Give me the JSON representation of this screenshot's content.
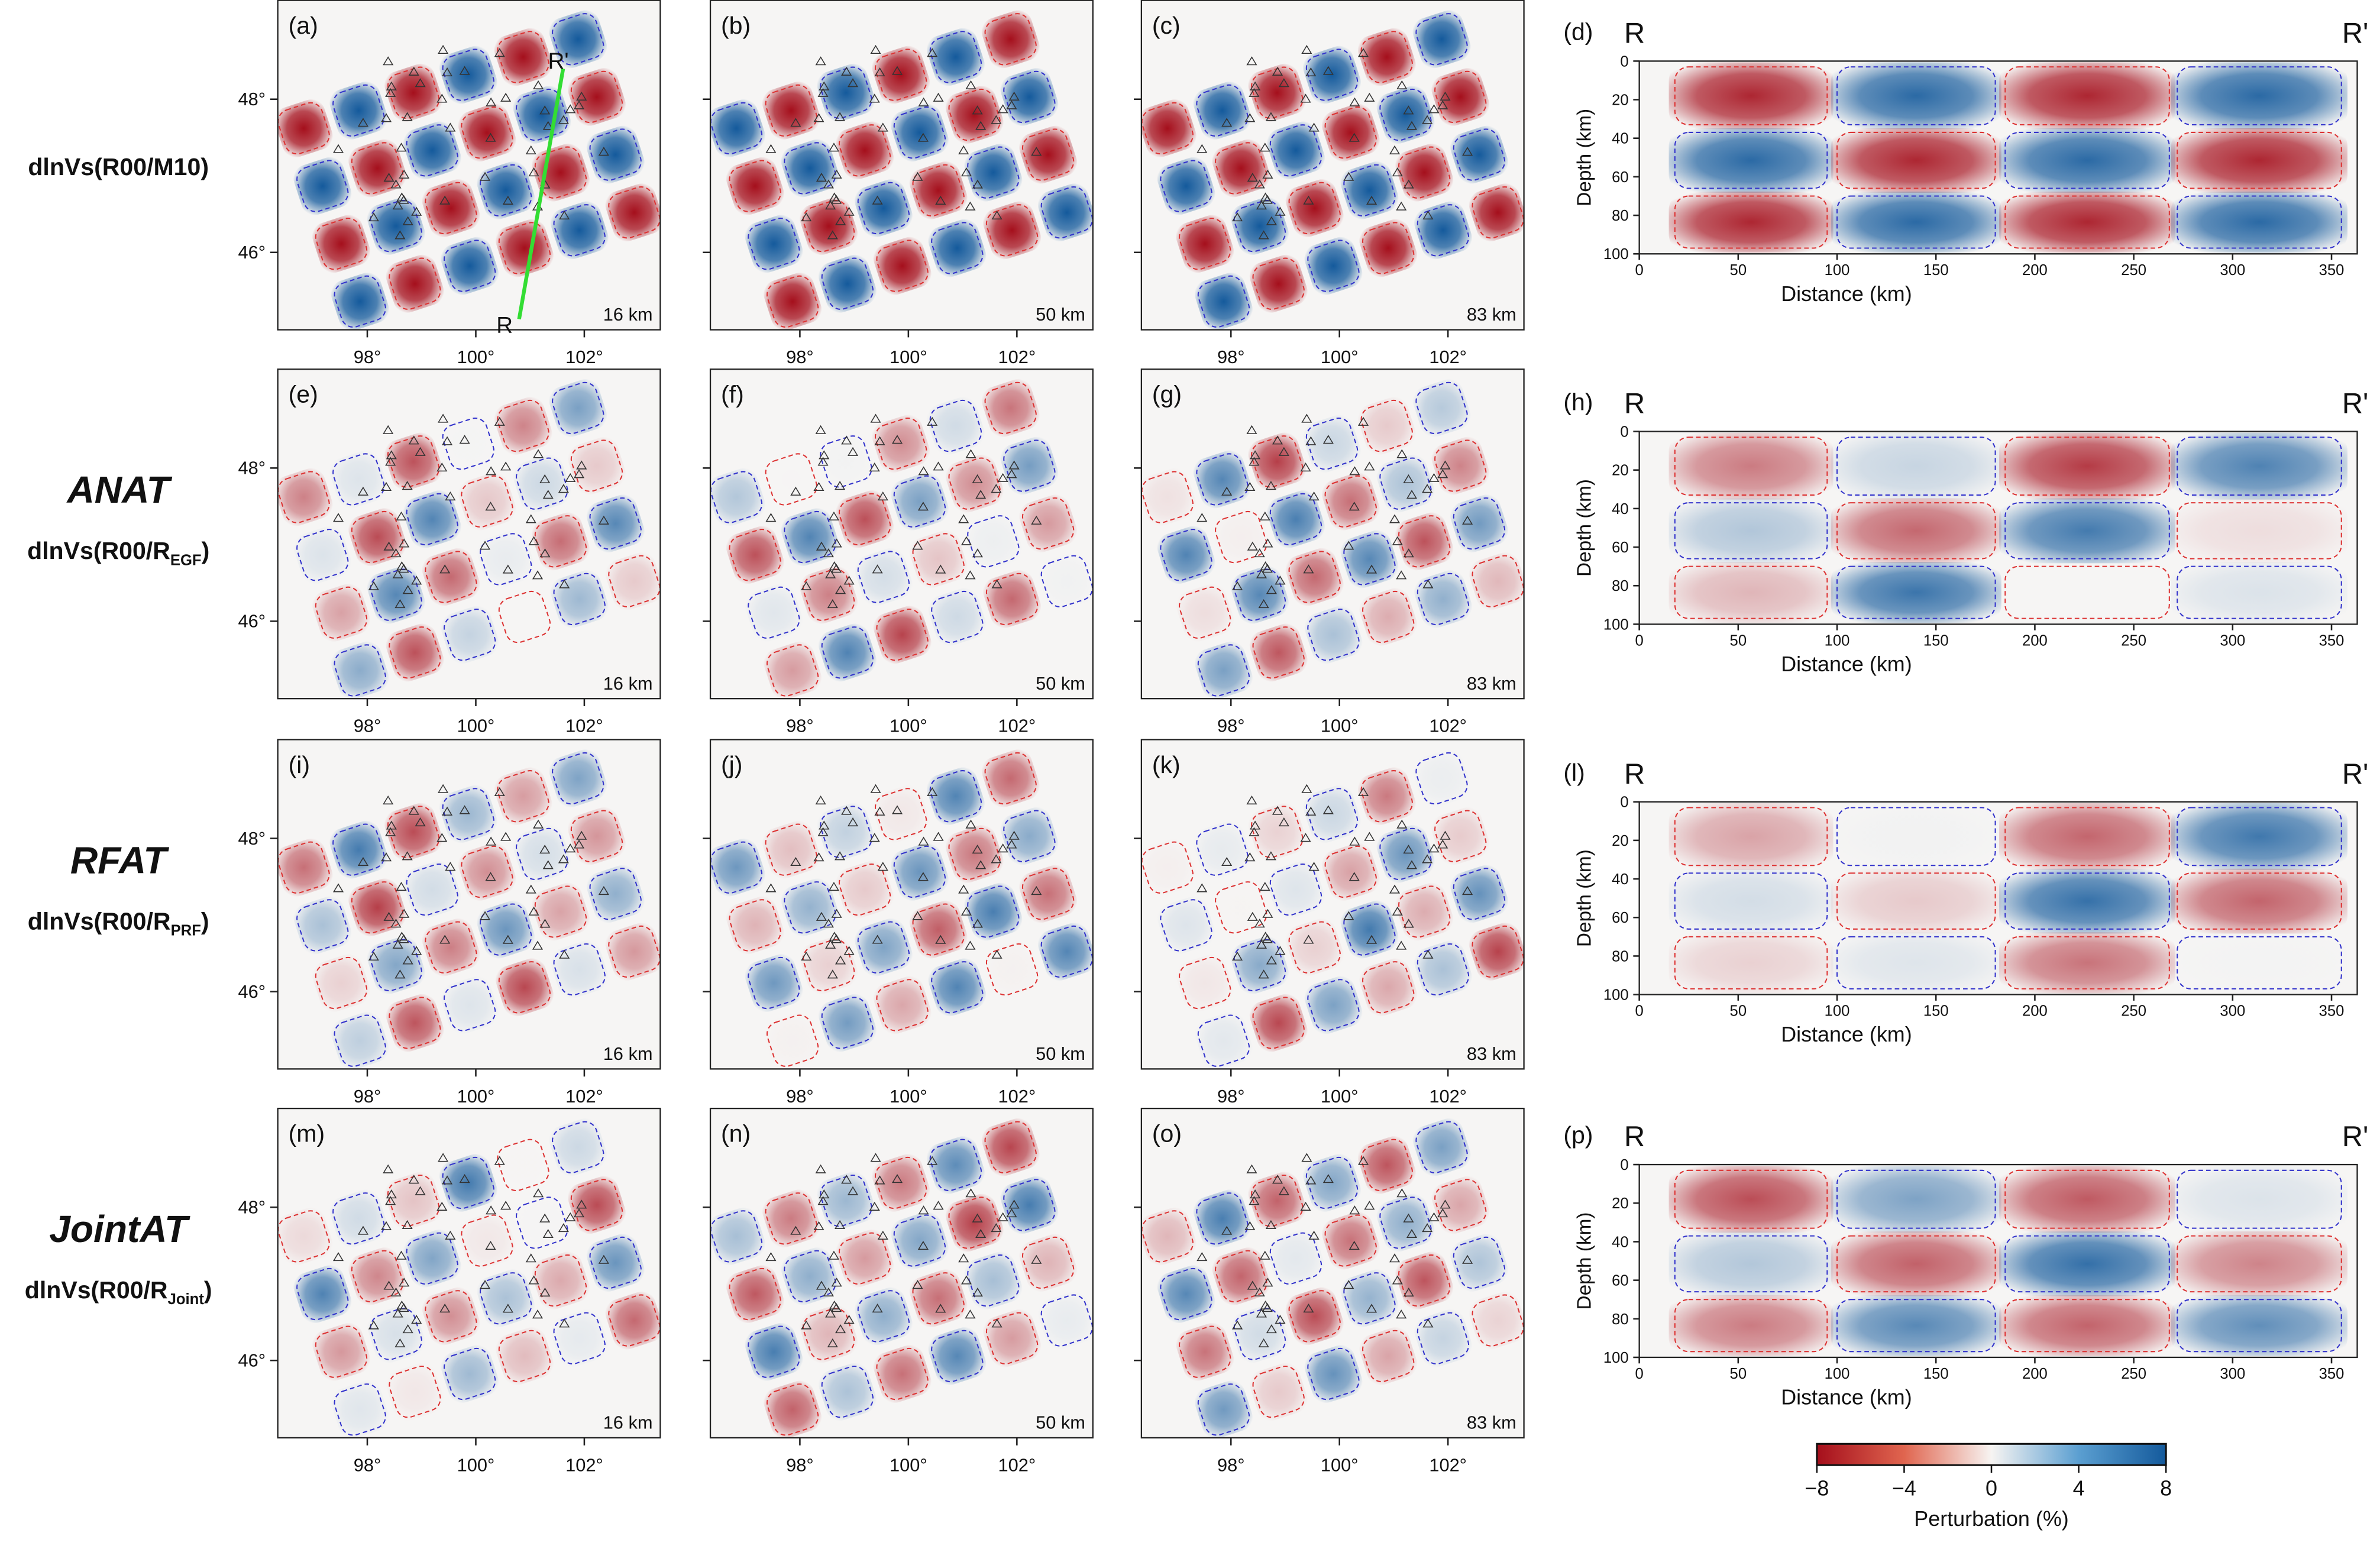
{
  "rows": [
    {
      "label": {
        "text": "dlnVs(R00/M10)"
      }
    },
    {
      "method": "ANAT",
      "label": {
        "text": "dlnVs(R00/R",
        "sub": "EGF",
        "tail": ")"
      }
    },
    {
      "method": "RFAT",
      "label": {
        "text": "dlnVs(R00/R",
        "sub": "PRF",
        "tail": ")"
      }
    },
    {
      "method": "JointAT",
      "label": {
        "text": "dlnVs(R00/R",
        "sub": "Joint",
        "tail": ")"
      }
    }
  ],
  "map_labels": [
    [
      "(a)",
      "(b)",
      "(c)"
    ],
    [
      "(e)",
      "(f)",
      "(g)"
    ],
    [
      "(i)",
      "(j)",
      "(k)"
    ],
    [
      "(m)",
      "(n)",
      "(o)"
    ]
  ],
  "section_labels": [
    "(d)",
    "(h)",
    "(l)",
    "(p)"
  ],
  "depths": [
    "16 km",
    "50 km",
    "83 km"
  ],
  "profile": {
    "start": "R",
    "end": "R'"
  },
  "map": {
    "lonlim": [
      96.35,
      103.4
    ],
    "latlim": [
      44.99,
      49.29
    ],
    "lon_ticks": [
      {
        "value": 98,
        "label": "98°"
      },
      {
        "value": 100,
        "label": "100°"
      },
      {
        "value": 102,
        "label": "102°"
      }
    ],
    "lat_ticks": [
      {
        "value": 48,
        "label": "48°"
      },
      {
        "value": 46,
        "label": "46°"
      }
    ]
  },
  "section": {
    "xlabel": "Distance (km)",
    "ylabel": "Depth (km)",
    "xlim": [
      0,
      363
    ],
    "ylim": [
      0,
      100
    ],
    "xticks": [
      0,
      50,
      100,
      150,
      200,
      250,
      300,
      350
    ],
    "yticks": [
      0,
      20,
      40,
      60,
      80,
      100
    ]
  },
  "colorbar": {
    "label": "Perturbation (%)",
    "lim": [
      -8,
      8
    ],
    "ticks": [
      {
        "value": -8,
        "label": "−8"
      },
      {
        "value": -4,
        "label": "−4"
      },
      0,
      4,
      8
    ],
    "colormap": [
      "#a50f1c",
      "#e0654f",
      "#f7f4f2",
      "#5b9fd1",
      "#145a9c"
    ]
  }
}
